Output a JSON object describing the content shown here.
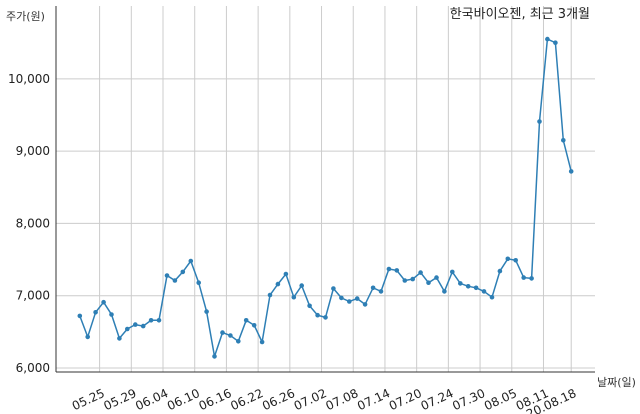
{
  "chart_data": {
    "type": "line",
    "title": "한국바이오젠, 최근 3개월",
    "xlabel": "날짜(일)",
    "ylabel": "주가(원)",
    "ylim": [
      6000,
      10800
    ],
    "yticks": [
      6000,
      7000,
      8000,
      9000,
      10000
    ],
    "ytick_labels": [
      "6,000",
      "7,000",
      "8,000",
      "9,000",
      "10,000"
    ],
    "grid": true,
    "xtick_labels": [
      "05.25",
      "05.29",
      "06.04",
      "06.10",
      "06.16",
      "06.22",
      "06.26",
      "07.02",
      "07.08",
      "07.14",
      "07.20",
      "07.24",
      "07.30",
      "08.05",
      "08.11",
      "20.08.18"
    ],
    "xtick_positions": [
      2.5,
      6.5,
      10.5,
      14.5,
      18.5,
      22.5,
      26.5,
      30.5,
      34.5,
      38.5,
      42.5,
      46.5,
      50.5,
      54.5,
      58.5,
      62
    ],
    "series": [
      {
        "color": "#2e7fb5",
        "x": [
          0,
          1,
          2,
          3,
          4,
          5,
          6,
          7,
          8,
          9,
          10,
          11,
          12,
          13,
          14,
          15,
          16,
          17,
          18,
          19,
          20,
          21,
          22,
          23,
          24,
          25,
          26,
          27,
          28,
          29,
          30,
          31,
          32,
          33,
          34,
          35,
          36,
          37,
          38,
          39,
          40,
          41,
          42,
          43,
          44,
          45,
          46,
          47,
          48,
          49,
          50,
          51,
          52,
          53,
          54,
          55,
          56,
          57,
          58,
          59,
          60,
          61,
          62
        ],
        "values": [
          6720,
          6430,
          6770,
          6910,
          6740,
          6410,
          6540,
          6600,
          6580,
          6660,
          6660,
          7280,
          7210,
          7330,
          7480,
          7180,
          6780,
          6160,
          6490,
          6450,
          6370,
          6660,
          6590,
          6360,
          7010,
          7160,
          7300,
          6980,
          7140,
          6860,
          6730,
          6700,
          7100,
          6970,
          6920,
          6960,
          6880,
          7110,
          7060,
          7370,
          7350,
          7210,
          7230,
          7320,
          7180,
          7250,
          7060,
          7330,
          7170,
          7130,
          7110,
          7060,
          6980,
          7340,
          7510,
          7490,
          7250,
          7240,
          9410,
          10550,
          10500,
          9150,
          8720
        ]
      }
    ]
  }
}
